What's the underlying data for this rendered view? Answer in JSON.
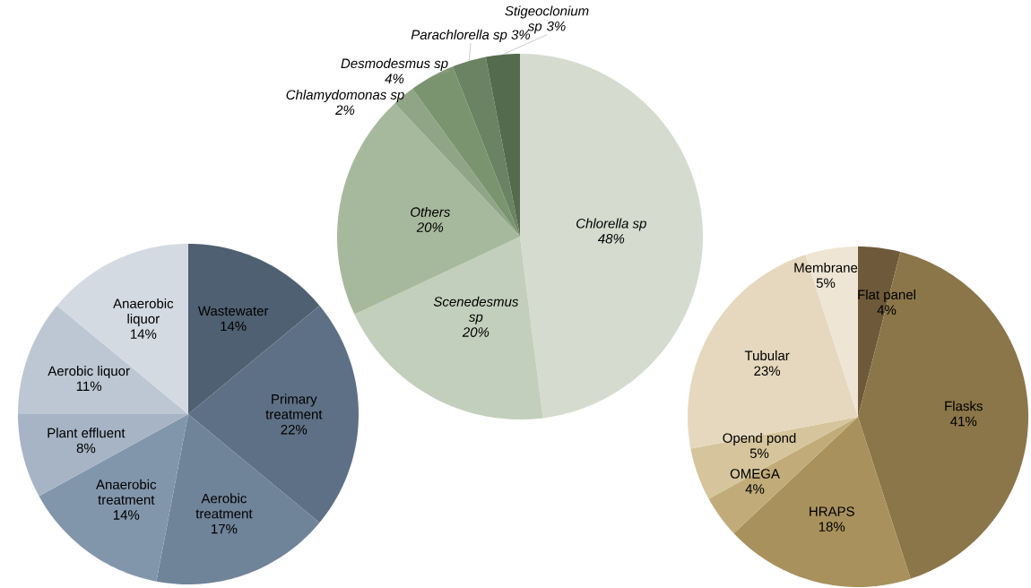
{
  "chart_data": [
    {
      "type": "pie",
      "categories": [
        "Wastewater",
        "Primary treatment",
        "Aerobic treatment",
        "Anaerobic treatment",
        "Plant effluent",
        "Aerobic liquor",
        "Anaerobic liquor"
      ],
      "values": [
        14,
        22,
        17,
        14,
        8,
        11,
        14
      ],
      "value_labels": [
        "14%",
        "22%",
        "17%",
        "14%",
        "8%",
        "11%",
        "14%"
      ],
      "colors": [
        "#4f6072",
        "#5e7085",
        "#6f8399",
        "#8296ab",
        "#a6b4c5",
        "#bcc7d3",
        "#d3dae2"
      ]
    },
    {
      "type": "pie",
      "categories": [
        "Chlorella sp",
        "Scenedesmus sp",
        "Others",
        "Chlamydomonas sp",
        "Desmodesmus sp",
        "Parachlorella sp",
        "Stigeoclonium sp"
      ],
      "values": [
        48,
        20,
        20,
        2,
        4,
        3,
        3
      ],
      "value_labels": [
        "48%",
        "20%",
        "20%",
        "2%",
        "4%",
        "3%",
        "3%"
      ],
      "colors": [
        "#d5dccf",
        "#c2cfbc",
        "#a7b99d",
        "#8fa585",
        "#7b9470",
        "#6b8362",
        "#556b4e"
      ]
    },
    {
      "type": "pie",
      "categories": [
        "Flat panel",
        "Flasks",
        "HRAPS",
        "OMEGA",
        "Opend pond",
        "Tubular",
        "Membrane"
      ],
      "values": [
        4,
        41,
        18,
        4,
        5,
        23,
        5
      ],
      "value_labels": [
        "4%",
        "41%",
        "18%",
        "4%",
        "5%",
        "23%",
        "5%"
      ],
      "colors": [
        "#6e5a3a",
        "#8b7649",
        "#a8915c",
        "#c1ac79",
        "#d6c59c",
        "#e6d8be",
        "#efe5d5"
      ]
    }
  ]
}
